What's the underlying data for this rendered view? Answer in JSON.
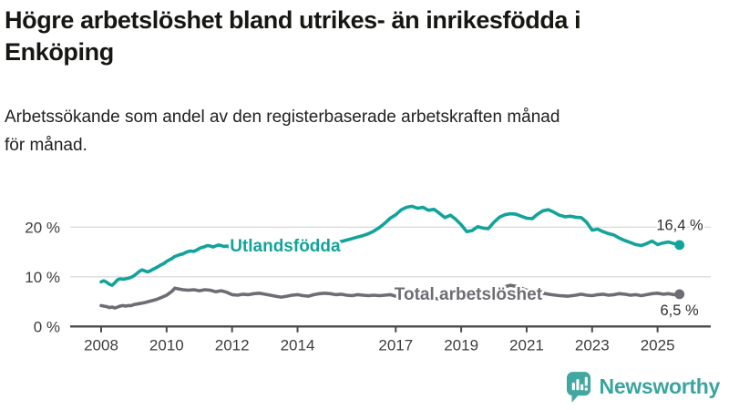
{
  "header": {
    "title_lines": [
      "Högre arbetslöshet bland utrikes- än inrikesfödda i",
      "Enköping"
    ],
    "subtitle_lines": [
      "Arbetssökande som andel av den registerbaserade arbetskraften månad",
      "för månad."
    ]
  },
  "footer": {
    "brand": "Newsworthy",
    "logo_icon": "bar-chart-speech-bubble-icon"
  },
  "colors": {
    "accent_teal": "#12a39a",
    "series_gray": "#6f6c74",
    "grid": "#dcdcdc",
    "axis": "#4a4a4a",
    "tick_text": "#3d3d3d",
    "value_text": "#2e2e2e",
    "logo_teal": "#3ba49e",
    "title_text": "#161613"
  },
  "chart_data": {
    "type": "line",
    "title": "Högre arbetslöshet bland utrikes- än inrikesfödda i Enköping",
    "subtitle": "Arbetssökande som andel av den registerbaserade arbetskraften månad för månad.",
    "unit": "%",
    "grid": true,
    "legend_position": "inline-on-line",
    "x_axis": {
      "ticks": [
        2008,
        2010,
        2012,
        2014,
        2017,
        2019,
        2021,
        2023,
        2025
      ],
      "range": [
        2007.05,
        2026.6
      ]
    },
    "y_axis": {
      "ticks": [
        {
          "value": 0,
          "label": "0 %"
        },
        {
          "value": 10,
          "label": "10 %"
        },
        {
          "value": 20,
          "label": "20 %"
        }
      ],
      "range": [
        0,
        26
      ]
    },
    "series": [
      {
        "id": "utlandsfodda",
        "name": "Utlandsfödda",
        "color": "#12a39a",
        "end_label": "16,4 %",
        "end_value": 16.4,
        "label_pos": [
          2011.93,
          16.4
        ],
        "points": [
          [
            2008.0,
            9.0
          ],
          [
            2008.08,
            9.2
          ],
          [
            2008.17,
            8.9
          ],
          [
            2008.25,
            8.5
          ],
          [
            2008.33,
            8.3
          ],
          [
            2008.42,
            8.8
          ],
          [
            2008.5,
            9.4
          ],
          [
            2008.58,
            9.6
          ],
          [
            2008.67,
            9.5
          ],
          [
            2008.75,
            9.6
          ],
          [
            2008.83,
            9.7
          ],
          [
            2008.92,
            9.9
          ],
          [
            2009.0,
            10.2
          ],
          [
            2009.08,
            10.6
          ],
          [
            2009.17,
            11.1
          ],
          [
            2009.25,
            11.4
          ],
          [
            2009.33,
            11.2
          ],
          [
            2009.42,
            11.0
          ],
          [
            2009.5,
            11.2
          ],
          [
            2009.58,
            11.5
          ],
          [
            2009.67,
            11.8
          ],
          [
            2009.75,
            12.1
          ],
          [
            2009.83,
            12.4
          ],
          [
            2009.92,
            12.7
          ],
          [
            2010.0,
            13.1
          ],
          [
            2010.08,
            13.4
          ],
          [
            2010.17,
            13.7
          ],
          [
            2010.25,
            14.1
          ],
          [
            2010.33,
            14.3
          ],
          [
            2010.42,
            14.5
          ],
          [
            2010.5,
            14.6
          ],
          [
            2010.58,
            14.9
          ],
          [
            2010.67,
            15.1
          ],
          [
            2010.75,
            15.2
          ],
          [
            2010.83,
            15.1
          ],
          [
            2010.92,
            15.4
          ],
          [
            2011.0,
            15.7
          ],
          [
            2011.08,
            15.9
          ],
          [
            2011.17,
            16.1
          ],
          [
            2011.25,
            16.3
          ],
          [
            2011.33,
            16.2
          ],
          [
            2011.42,
            16.0
          ],
          [
            2011.5,
            16.2
          ],
          [
            2011.58,
            16.4
          ],
          [
            2011.67,
            16.3
          ],
          [
            2011.75,
            16.1
          ],
          [
            2011.83,
            16.2
          ],
          [
            2011.92,
            16.0
          ],
          [
            2012.0,
            15.8
          ],
          [
            2012.17,
            15.5
          ],
          [
            2012.33,
            15.3
          ],
          [
            2012.5,
            15.1
          ],
          [
            2012.67,
            15.2
          ],
          [
            2012.83,
            15.4
          ],
          [
            2013.0,
            15.3
          ],
          [
            2013.17,
            15.5
          ],
          [
            2013.33,
            15.6
          ],
          [
            2013.5,
            15.4
          ],
          [
            2013.67,
            15.6
          ],
          [
            2013.83,
            15.8
          ],
          [
            2014.0,
            15.9
          ],
          [
            2014.17,
            16.0
          ],
          [
            2014.33,
            16.2
          ],
          [
            2014.5,
            16.1
          ],
          [
            2014.67,
            16.3
          ],
          [
            2014.83,
            16.5
          ],
          [
            2015.0,
            16.6
          ],
          [
            2015.17,
            16.8
          ],
          [
            2015.33,
            17.1
          ],
          [
            2015.5,
            17.4
          ],
          [
            2015.67,
            17.7
          ],
          [
            2015.83,
            18.0
          ],
          [
            2016.0,
            18.3
          ],
          [
            2016.17,
            18.7
          ],
          [
            2016.33,
            19.2
          ],
          [
            2016.5,
            19.9
          ],
          [
            2016.67,
            20.8
          ],
          [
            2016.83,
            21.8
          ],
          [
            2017.0,
            22.5
          ],
          [
            2017.17,
            23.5
          ],
          [
            2017.33,
            24.0
          ],
          [
            2017.5,
            24.2
          ],
          [
            2017.67,
            23.8
          ],
          [
            2017.83,
            24.0
          ],
          [
            2018.0,
            23.4
          ],
          [
            2018.17,
            23.6
          ],
          [
            2018.33,
            22.8
          ],
          [
            2018.5,
            21.9
          ],
          [
            2018.67,
            22.4
          ],
          [
            2018.83,
            21.6
          ],
          [
            2019.0,
            20.5
          ],
          [
            2019.17,
            19.1
          ],
          [
            2019.33,
            19.3
          ],
          [
            2019.5,
            20.1
          ],
          [
            2019.67,
            19.8
          ],
          [
            2019.83,
            19.7
          ],
          [
            2020.0,
            21.0
          ],
          [
            2020.17,
            22.0
          ],
          [
            2020.33,
            22.5
          ],
          [
            2020.5,
            22.7
          ],
          [
            2020.67,
            22.6
          ],
          [
            2020.83,
            22.2
          ],
          [
            2021.0,
            21.8
          ],
          [
            2021.17,
            21.7
          ],
          [
            2021.33,
            22.6
          ],
          [
            2021.5,
            23.3
          ],
          [
            2021.67,
            23.5
          ],
          [
            2021.83,
            23.0
          ],
          [
            2022.0,
            22.4
          ],
          [
            2022.17,
            22.1
          ],
          [
            2022.33,
            22.2
          ],
          [
            2022.5,
            22.0
          ],
          [
            2022.67,
            21.9
          ],
          [
            2022.83,
            21.0
          ],
          [
            2023.0,
            19.4
          ],
          [
            2023.17,
            19.6
          ],
          [
            2023.33,
            19.1
          ],
          [
            2023.5,
            18.7
          ],
          [
            2023.67,
            18.4
          ],
          [
            2023.83,
            17.8
          ],
          [
            2024.0,
            17.3
          ],
          [
            2024.17,
            16.9
          ],
          [
            2024.33,
            16.5
          ],
          [
            2024.5,
            16.3
          ],
          [
            2024.67,
            16.7
          ],
          [
            2024.83,
            17.2
          ],
          [
            2025.0,
            16.5
          ],
          [
            2025.17,
            16.8
          ],
          [
            2025.33,
            17.0
          ],
          [
            2025.5,
            16.7
          ],
          [
            2025.67,
            16.4
          ]
        ]
      },
      {
        "id": "total",
        "name": "Total arbetslöshet",
        "color": "#6f6c74",
        "end_label": "6,5 %",
        "end_value": 6.5,
        "label_pos": [
          2016.96,
          6.66
        ],
        "points": [
          [
            2008.0,
            4.2
          ],
          [
            2008.08,
            4.1
          ],
          [
            2008.17,
            4.0
          ],
          [
            2008.25,
            3.8
          ],
          [
            2008.33,
            3.9
          ],
          [
            2008.42,
            3.7
          ],
          [
            2008.5,
            3.9
          ],
          [
            2008.58,
            4.1
          ],
          [
            2008.67,
            4.2
          ],
          [
            2008.75,
            4.1
          ],
          [
            2008.83,
            4.2
          ],
          [
            2008.92,
            4.2
          ],
          [
            2009.0,
            4.4
          ],
          [
            2009.17,
            4.6
          ],
          [
            2009.33,
            4.8
          ],
          [
            2009.5,
            5.1
          ],
          [
            2009.67,
            5.4
          ],
          [
            2009.83,
            5.8
          ],
          [
            2010.0,
            6.3
          ],
          [
            2010.17,
            7.1
          ],
          [
            2010.25,
            7.7
          ],
          [
            2010.33,
            7.6
          ],
          [
            2010.5,
            7.4
          ],
          [
            2010.67,
            7.3
          ],
          [
            2010.83,
            7.4
          ],
          [
            2011.0,
            7.2
          ],
          [
            2011.17,
            7.4
          ],
          [
            2011.33,
            7.3
          ],
          [
            2011.5,
            7.0
          ],
          [
            2011.67,
            7.2
          ],
          [
            2011.83,
            6.9
          ],
          [
            2012.0,
            6.4
          ],
          [
            2012.17,
            6.3
          ],
          [
            2012.33,
            6.5
          ],
          [
            2012.5,
            6.4
          ],
          [
            2012.67,
            6.6
          ],
          [
            2012.83,
            6.7
          ],
          [
            2013.0,
            6.5
          ],
          [
            2013.17,
            6.3
          ],
          [
            2013.33,
            6.1
          ],
          [
            2013.5,
            5.9
          ],
          [
            2013.67,
            6.1
          ],
          [
            2013.83,
            6.3
          ],
          [
            2014.0,
            6.4
          ],
          [
            2014.17,
            6.2
          ],
          [
            2014.33,
            6.1
          ],
          [
            2014.5,
            6.4
          ],
          [
            2014.67,
            6.6
          ],
          [
            2014.83,
            6.7
          ],
          [
            2015.0,
            6.6
          ],
          [
            2015.17,
            6.4
          ],
          [
            2015.33,
            6.5
          ],
          [
            2015.5,
            6.3
          ],
          [
            2015.67,
            6.2
          ],
          [
            2015.83,
            6.4
          ],
          [
            2016.0,
            6.3
          ],
          [
            2016.17,
            6.2
          ],
          [
            2016.33,
            6.3
          ],
          [
            2016.5,
            6.2
          ],
          [
            2016.67,
            6.3
          ],
          [
            2016.83,
            6.4
          ],
          [
            2017.0,
            6.1
          ],
          [
            2017.25,
            6.0
          ],
          [
            2017.5,
            5.9
          ],
          [
            2017.75,
            5.8
          ],
          [
            2018.0,
            5.7
          ],
          [
            2018.25,
            5.6
          ],
          [
            2018.5,
            5.5
          ],
          [
            2018.75,
            5.6
          ],
          [
            2019.0,
            5.7
          ],
          [
            2019.25,
            5.9
          ],
          [
            2019.5,
            6.0
          ],
          [
            2019.75,
            6.2
          ],
          [
            2020.0,
            6.6
          ],
          [
            2020.17,
            7.4
          ],
          [
            2020.33,
            8.0
          ],
          [
            2020.5,
            8.3
          ],
          [
            2020.67,
            8.1
          ],
          [
            2020.83,
            7.7
          ],
          [
            2021.0,
            7.3
          ],
          [
            2021.25,
            7.0
          ],
          [
            2021.5,
            6.7
          ],
          [
            2021.75,
            6.4
          ],
          [
            2022.0,
            6.2
          ],
          [
            2022.25,
            6.1
          ],
          [
            2022.5,
            6.3
          ],
          [
            2022.67,
            6.5
          ],
          [
            2022.83,
            6.3
          ],
          [
            2023.0,
            6.2
          ],
          [
            2023.17,
            6.4
          ],
          [
            2023.33,
            6.5
          ],
          [
            2023.5,
            6.3
          ],
          [
            2023.67,
            6.4
          ],
          [
            2023.83,
            6.6
          ],
          [
            2024.0,
            6.5
          ],
          [
            2024.17,
            6.3
          ],
          [
            2024.33,
            6.4
          ],
          [
            2024.5,
            6.2
          ],
          [
            2024.67,
            6.4
          ],
          [
            2024.83,
            6.6
          ],
          [
            2025.0,
            6.7
          ],
          [
            2025.17,
            6.5
          ],
          [
            2025.33,
            6.6
          ],
          [
            2025.5,
            6.4
          ],
          [
            2025.67,
            6.5
          ]
        ]
      }
    ]
  }
}
